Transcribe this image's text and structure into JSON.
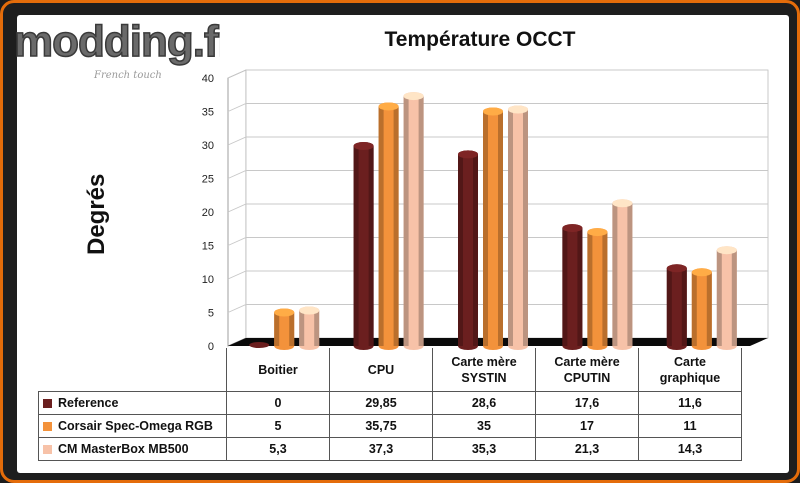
{
  "logo": {
    "name": "modding.fr",
    "tagline": "French touch"
  },
  "chart_data": {
    "type": "bar",
    "title": "Température OCCT",
    "ylabel": "Degrés",
    "xlabel": "",
    "ylim": [
      0,
      40
    ],
    "yticks": [
      "0",
      "5",
      "10",
      "15",
      "20",
      "25",
      "30",
      "35",
      "40"
    ],
    "categories": [
      "Boitier",
      "CPU",
      "Carte mère SYSTIN",
      "Carte mère CPUTIN",
      "Carte graphique"
    ],
    "series": [
      {
        "name": "Reference",
        "values": [
          0,
          29.85,
          28.6,
          17.6,
          11.6
        ],
        "labels": [
          "0",
          "29,85",
          "28,6",
          "17,6",
          "11,6"
        ],
        "color": "#6b1f1f"
      },
      {
        "name": "Corsair Spec-Omega RGB",
        "values": [
          5,
          35.75,
          35,
          17,
          11
        ],
        "labels": [
          "5",
          "35,75",
          "35",
          "17",
          "11"
        ],
        "color": "#f3923b"
      },
      {
        "name": "CM MasterBox MB500",
        "values": [
          5.3,
          37.3,
          35.3,
          21.3,
          14.3
        ],
        "labels": [
          "5,3",
          "37,3",
          "35,3",
          "21,3",
          "14,3"
        ],
        "color": "#f7c2a8"
      }
    ],
    "grid": true,
    "legend": "table-below"
  },
  "table": {
    "category_rows": [
      [
        "Boitier"
      ],
      [
        "CPU"
      ],
      [
        "Carte mère",
        "SYSTIN"
      ],
      [
        "Carte mère",
        "CPUTIN"
      ],
      [
        "Carte",
        "graphique"
      ]
    ]
  }
}
